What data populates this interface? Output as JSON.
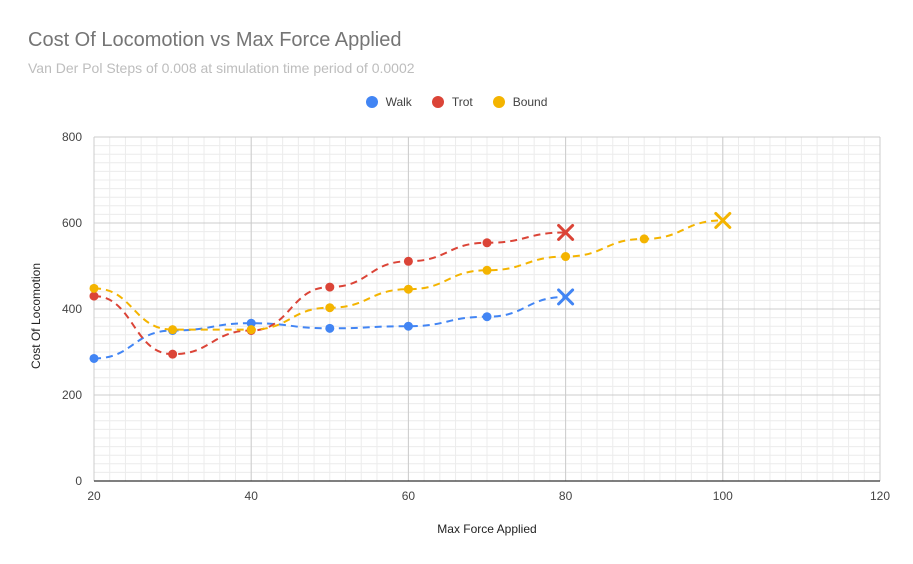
{
  "chart_data": {
    "type": "line",
    "title": "Cost Of Locomotion vs Max Force Applied",
    "subtitle": "Van Der Pol Steps of 0.008 at simulation time period of 0.0002",
    "xlabel": "Max Force Applied",
    "ylabel": "Cost Of Locomotion",
    "xlim": [
      20,
      120
    ],
    "ylim": [
      0,
      800
    ],
    "xticks": [
      20,
      40,
      60,
      80,
      100,
      120
    ],
    "yticks": [
      0,
      200,
      400,
      600,
      800
    ],
    "grid": true,
    "legend_position": "top",
    "series": [
      {
        "name": "Walk",
        "color": "#4285f4",
        "x": [
          20,
          30,
          40,
          50,
          60,
          70,
          80
        ],
        "y": [
          285,
          350,
          367,
          355,
          360,
          382,
          428
        ],
        "end_marker": "x"
      },
      {
        "name": "Trot",
        "color": "#db4437",
        "x": [
          20,
          30,
          40,
          50,
          60,
          70,
          80
        ],
        "y": [
          430,
          295,
          350,
          451,
          511,
          554,
          578
        ],
        "end_marker": "x"
      },
      {
        "name": "Bound",
        "color": "#f4b400",
        "x": [
          20,
          30,
          40,
          50,
          60,
          70,
          80,
          90,
          100
        ],
        "y": [
          448,
          352,
          352,
          403,
          446,
          490,
          522,
          563,
          606
        ],
        "end_marker": "x"
      }
    ]
  }
}
